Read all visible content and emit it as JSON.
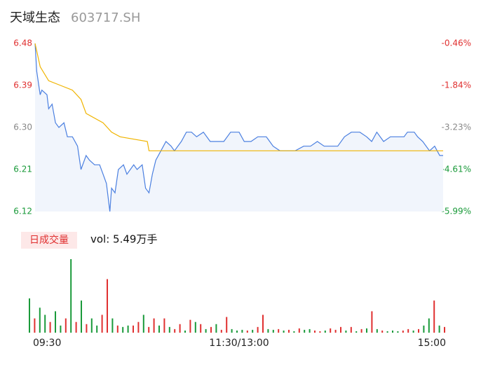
{
  "header": {
    "title": "天域生态",
    "code": "603717.SH"
  },
  "chart_data": {
    "type": "line",
    "xlim": [
      0,
      240
    ],
    "xticks": [
      {
        "value": 0,
        "label": "09:30"
      },
      {
        "value": 120,
        "label": "11:30/13:00"
      },
      {
        "value": 240,
        "label": "15:00"
      }
    ],
    "ylim": [
      6.12,
      6.48
    ],
    "yticks": [
      6.48,
      6.39,
      {
        "value": 6.3,
        "label": "6.30"
      },
      6.21,
      6.12
    ],
    "ytick_colors": [
      "#e03030",
      "#e03030",
      "#888888",
      "#1a9a3a",
      "#1a9a3a"
    ],
    "y2lim": [
      -5.99,
      -0.46
    ],
    "y2ticks": [
      {
        "value": -0.46,
        "label": "-0.46%"
      },
      {
        "value": -1.84,
        "label": "-1.84%"
      },
      {
        "value": -3.23,
        "label": "-3.23%"
      },
      {
        "value": -4.61,
        "label": "-4.61%"
      },
      {
        "value": -5.99,
        "label": "-5.99%"
      }
    ],
    "series": [
      {
        "color": "#4a7fe0",
        "x": [
          0,
          1,
          3,
          4,
          7,
          8,
          10,
          12,
          14,
          17,
          19,
          22,
          25,
          27,
          30,
          32,
          35,
          38,
          40,
          42,
          44,
          45,
          47,
          49,
          52,
          54,
          58,
          60,
          63,
          65,
          67,
          69,
          71,
          74,
          77,
          80,
          82,
          86,
          89,
          92,
          95,
          99,
          103,
          107,
          111,
          115,
          120,
          123,
          127,
          131,
          136,
          140,
          144,
          148,
          153,
          158,
          162,
          166,
          170,
          174,
          178,
          182,
          186,
          191,
          195,
          198,
          201,
          205,
          209,
          213,
          217,
          219,
          223,
          225,
          228,
          232,
          235,
          238,
          240
        ],
        "values": [
          6.48,
          6.42,
          6.37,
          6.38,
          6.37,
          6.34,
          6.35,
          6.31,
          6.3,
          6.31,
          6.28,
          6.28,
          6.26,
          6.21,
          6.24,
          6.23,
          6.22,
          6.22,
          6.2,
          6.18,
          6.12,
          6.17,
          6.16,
          6.21,
          6.22,
          6.2,
          6.22,
          6.21,
          6.22,
          6.17,
          6.16,
          6.2,
          6.23,
          6.25,
          6.27,
          6.26,
          6.25,
          6.27,
          6.29,
          6.29,
          6.28,
          6.29,
          6.27,
          6.27,
          6.27,
          6.29,
          6.29,
          6.27,
          6.27,
          6.28,
          6.28,
          6.26,
          6.25,
          6.25,
          6.25,
          6.26,
          6.26,
          6.27,
          6.26,
          6.26,
          6.26,
          6.28,
          6.29,
          6.29,
          6.28,
          6.27,
          6.29,
          6.27,
          6.28,
          6.28,
          6.28,
          6.29,
          6.29,
          6.28,
          6.27,
          6.25,
          6.26,
          6.24,
          6.24
        ]
      },
      {
        "color": "#f0b400",
        "x": [
          0,
          3,
          8,
          15,
          22,
          27,
          30,
          40,
          45,
          50,
          66,
          67,
          240
        ],
        "values": [
          6.48,
          6.43,
          6.4,
          6.39,
          6.38,
          6.36,
          6.33,
          6.31,
          6.29,
          6.28,
          6.27,
          6.25,
          6.25
        ]
      }
    ],
    "volume_label": "日成交量",
    "volume_text": "vol: 5.49万手",
    "volume": {
      "values": [
        48,
        20,
        35,
        25,
        15,
        30,
        10,
        20,
        103,
        15,
        45,
        12,
        20,
        10,
        25,
        75,
        20,
        10,
        8,
        10,
        10,
        15,
        25,
        8,
        20,
        10,
        20,
        8,
        5,
        12,
        3,
        18,
        15,
        12,
        5,
        8,
        12,
        4,
        22,
        5,
        3,
        4,
        3,
        4,
        8,
        25,
        5,
        4,
        5,
        3,
        4,
        2,
        6,
        4,
        5,
        3,
        2,
        3,
        6,
        4,
        8,
        3,
        8,
        2,
        5,
        6,
        30,
        5,
        3,
        2,
        3,
        2,
        3,
        5,
        3,
        5,
        10,
        20,
        45,
        10,
        8
      ],
      "colors": [
        "#1a9a3a",
        "#e03030",
        "#1a9a3a",
        "#1a9a3a",
        "#e03030",
        "#1a9a3a",
        "#1a9a3a",
        "#e03030",
        "#1a9a3a",
        "#e03030",
        "#1a9a3a",
        "#e03030",
        "#1a9a3a",
        "#1a9a3a",
        "#e03030",
        "#e03030",
        "#1a9a3a",
        "#e03030",
        "#1a9a3a",
        "#1a9a3a",
        "#e03030",
        "#e03030",
        "#1a9a3a",
        "#e03030",
        "#e03030",
        "#1a9a3a",
        "#e03030",
        "#1a9a3a",
        "#e03030",
        "#e03030",
        "#1a9a3a",
        "#e03030",
        "#1a9a3a",
        "#e03030",
        "#1a9a3a",
        "#e03030",
        "#1a9a3a",
        "#e03030",
        "#e03030",
        "#1a9a3a",
        "#1a9a3a",
        "#1a9a3a",
        "#e03030",
        "#1a9a3a",
        "#e03030",
        "#e03030",
        "#1a9a3a",
        "#1a9a3a",
        "#e03030",
        "#1a9a3a",
        "#e03030",
        "#1a9a3a",
        "#e03030",
        "#1a9a3a",
        "#1a9a3a",
        "#e03030",
        "#e03030",
        "#1a9a3a",
        "#e03030",
        "#e03030",
        "#e03030",
        "#1a9a3a",
        "#e03030",
        "#1a9a3a",
        "#e03030",
        "#1a9a3a",
        "#e03030",
        "#1a9a3a",
        "#e03030",
        "#1a9a3a",
        "#1a9a3a",
        "#1a9a3a",
        "#e03030",
        "#e03030",
        "#1a9a3a",
        "#e03030",
        "#1a9a3a",
        "#1a9a3a",
        "#e03030",
        "#1a9a3a",
        "#e03030"
      ]
    }
  }
}
